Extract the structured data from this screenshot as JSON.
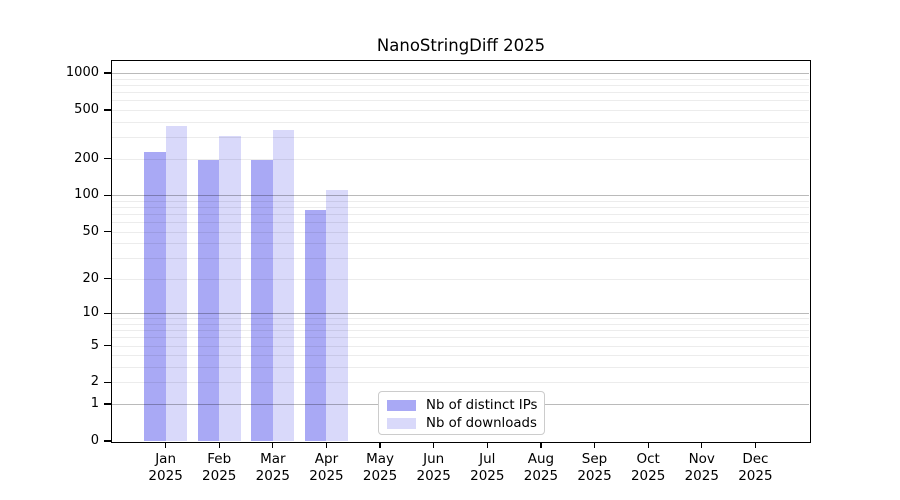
{
  "figure": {
    "background": "#ffffff"
  },
  "chart_data": {
    "type": "bar",
    "title": "NanoStringDiff 2025",
    "x_categories": [
      "Jan",
      "Feb",
      "Mar",
      "Apr",
      "May",
      "Jun",
      "Jul",
      "Aug",
      "Sep",
      "Oct",
      "Nov",
      "Dec"
    ],
    "x_year": "2025",
    "series": [
      {
        "name": "Nb of distinct IPs",
        "color": "#a9a9f5",
        "values": [
          227,
          196,
          193,
          75,
          null,
          null,
          null,
          null,
          null,
          null,
          null,
          null
        ]
      },
      {
        "name": "Nb of downloads",
        "color": "#d9d9fa",
        "values": [
          371,
          303,
          340,
          110,
          null,
          null,
          null,
          null,
          null,
          null,
          null,
          null
        ]
      }
    ],
    "y_axis": {
      "scale": "log1p",
      "ticks": [
        1000,
        500,
        200,
        100,
        50,
        20,
        10,
        5,
        2,
        1,
        0
      ],
      "min": 0,
      "max": 1000
    },
    "gridlines": {
      "major": [
        1,
        10,
        100,
        1000
      ],
      "minor": [
        2,
        3,
        4,
        5,
        6,
        7,
        8,
        9,
        20,
        30,
        40,
        50,
        60,
        70,
        80,
        90,
        200,
        300,
        400,
        500,
        600,
        700,
        800,
        900
      ]
    },
    "legend": {
      "position": "bottom-center-left"
    }
  }
}
